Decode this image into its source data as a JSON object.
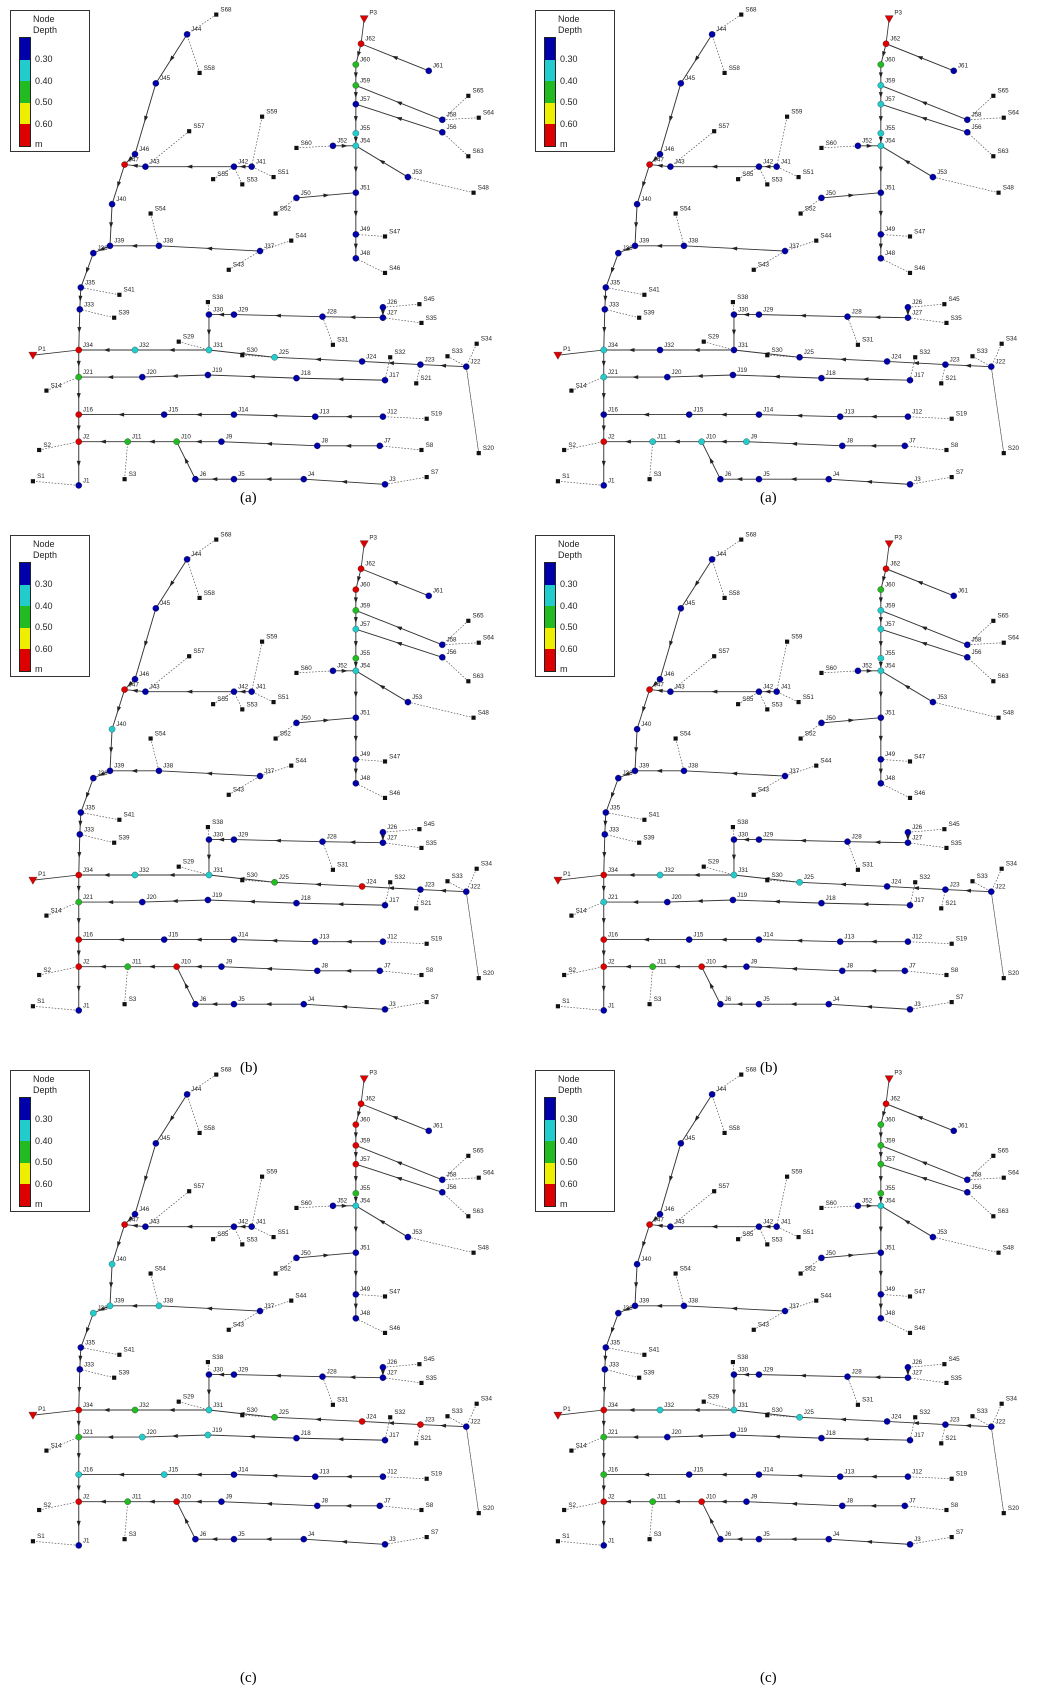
{
  "legend": {
    "title_line1": "Node",
    "title_line2": "Depth",
    "values": [
      "0.30",
      "0.40",
      "0.50",
      "0.60"
    ],
    "unit": "m",
    "colors": [
      "#0000aa",
      "#22cccc",
      "#22bb22",
      "#eeee00",
      "#dd0000"
    ]
  },
  "panels": [
    {
      "caption": "(a)"
    },
    {
      "caption": "(a)"
    },
    {
      "caption": "(b)"
    },
    {
      "caption": "(b)"
    },
    {
      "caption": "(c)"
    },
    {
      "caption": "(c)"
    }
  ],
  "network": {
    "junctions": [
      [
        "J1",
        56,
        466
      ],
      [
        "J2",
        56,
        424
      ],
      [
        "J3",
        350,
        465
      ],
      [
        "J4",
        272,
        460
      ],
      [
        "J5",
        205,
        460
      ],
      [
        "J6",
        168,
        460
      ],
      [
        "J7",
        345,
        428
      ],
      [
        "J8",
        285,
        428
      ],
      [
        "J9",
        193,
        424
      ],
      [
        "J10",
        150,
        424
      ],
      [
        "J11",
        103,
        424
      ],
      [
        "J12",
        348,
        400
      ],
      [
        "J13",
        283,
        400
      ],
      [
        "J14",
        205,
        398
      ],
      [
        "J15",
        138,
        398
      ],
      [
        "J16",
        56,
        398
      ],
      [
        "J17",
        350,
        365
      ],
      [
        "J18",
        265,
        363
      ],
      [
        "J19",
        180,
        360
      ],
      [
        "J20",
        117,
        362
      ],
      [
        "J21",
        56,
        362
      ],
      [
        "J22",
        428,
        352
      ],
      [
        "J23",
        384,
        350
      ],
      [
        "J24",
        328,
        347
      ],
      [
        "J25",
        244,
        343
      ],
      [
        "J26",
        348,
        295
      ],
      [
        "J27",
        348,
        305
      ],
      [
        "J28",
        290,
        304
      ],
      [
        "J29",
        205,
        302
      ],
      [
        "J30",
        181,
        302
      ],
      [
        "J31",
        181,
        336
      ],
      [
        "J32",
        110,
        336
      ],
      [
        "J33",
        57,
        297
      ],
      [
        "J34",
        56,
        336
      ],
      [
        "J35",
        58,
        276
      ],
      [
        "J36",
        70,
        243
      ],
      [
        "J37",
        230,
        241
      ],
      [
        "J38",
        133,
        236
      ],
      [
        "J39",
        86,
        236
      ],
      [
        "J40",
        88,
        196
      ],
      [
        "J41",
        222,
        160
      ],
      [
        "J42",
        205,
        160
      ],
      [
        "J43",
        120,
        160
      ],
      [
        "J45",
        130,
        80
      ],
      [
        "J46",
        110,
        148
      ],
      [
        "J47",
        100,
        158
      ],
      [
        "J44",
        160,
        33
      ],
      [
        "J48",
        322,
        248
      ],
      [
        "J49",
        322,
        225
      ],
      [
        "J50",
        265,
        190
      ],
      [
        "J51",
        322,
        185
      ],
      [
        "J53",
        372,
        170
      ],
      [
        "J54",
        322,
        140
      ],
      [
        "J55",
        322,
        128
      ],
      [
        "J56",
        405,
        127
      ],
      [
        "J57",
        322,
        100
      ],
      [
        "J58",
        405,
        115
      ],
      [
        "J59",
        322,
        82
      ],
      [
        "J60",
        322,
        62
      ],
      [
        "J61",
        392,
        68
      ],
      [
        "J62",
        327,
        42
      ],
      [
        "J52",
        300,
        140
      ]
    ],
    "pipes": [
      [
        "J1",
        "J2"
      ],
      [
        "J2",
        "J16"
      ],
      [
        "J16",
        "J21"
      ],
      [
        "J21",
        "J34"
      ],
      [
        "J34",
        "J33"
      ],
      [
        "J33",
        "J35"
      ],
      [
        "J35",
        "J36"
      ],
      [
        "J36",
        "J39"
      ],
      [
        "J39",
        "J40"
      ],
      [
        "J40",
        "J47"
      ],
      [
        "J47",
        "J46"
      ],
      [
        "J46",
        "J45"
      ],
      [
        "J45",
        "J44"
      ],
      [
        "J2",
        "J11"
      ],
      [
        "J11",
        "J10"
      ],
      [
        "J10",
        "J9"
      ],
      [
        "J9",
        "J8"
      ],
      [
        "J8",
        "J7"
      ],
      [
        "J10",
        "J6"
      ],
      [
        "J6",
        "J5"
      ],
      [
        "J5",
        "J4"
      ],
      [
        "J4",
        "J3"
      ],
      [
        "J16",
        "J15"
      ],
      [
        "J15",
        "J14"
      ],
      [
        "J14",
        "J13"
      ],
      [
        "J13",
        "J12"
      ],
      [
        "J21",
        "J20"
      ],
      [
        "J20",
        "J19"
      ],
      [
        "J19",
        "J18"
      ],
      [
        "J18",
        "J17"
      ],
      [
        "J34",
        "J32"
      ],
      [
        "J32",
        "J31"
      ],
      [
        "J31",
        "J25"
      ],
      [
        "J25",
        "J24"
      ],
      [
        "J24",
        "J23"
      ],
      [
        "J23",
        "J22"
      ],
      [
        "J31",
        "J30"
      ],
      [
        "J30",
        "J29"
      ],
      [
        "J29",
        "J28"
      ],
      [
        "J28",
        "J27"
      ],
      [
        "J27",
        "J26"
      ],
      [
        "J39",
        "J38"
      ],
      [
        "J38",
        "J37"
      ],
      [
        "J47",
        "J43"
      ],
      [
        "J43",
        "J42"
      ],
      [
        "J42",
        "J41"
      ],
      [
        "J48",
        "J49"
      ],
      [
        "J49",
        "J51"
      ],
      [
        "J51",
        "J50"
      ],
      [
        "J51",
        "J54"
      ],
      [
        "J54",
        "J52"
      ],
      [
        "J54",
        "J53"
      ],
      [
        "J54",
        "J55"
      ],
      [
        "J55",
        "J57"
      ],
      [
        "J57",
        "J56"
      ],
      [
        "J57",
        "J59"
      ],
      [
        "J59",
        "J58"
      ],
      [
        "J59",
        "J60"
      ],
      [
        "J60",
        "J62"
      ],
      [
        "J62",
        "J61"
      ]
    ],
    "subcatchments": [
      [
        "S1",
        12,
        462
      ],
      [
        "S2",
        18,
        432
      ],
      [
        "S3",
        100,
        460
      ],
      [
        "S7",
        390,
        458
      ],
      [
        "S8",
        385,
        432
      ],
      [
        "S19",
        390,
        402
      ],
      [
        "S20",
        440,
        435
      ],
      [
        "S21",
        380,
        368
      ],
      [
        "S34",
        438,
        330
      ],
      [
        "S33",
        410,
        342
      ],
      [
        "S32",
        355,
        343
      ],
      [
        "S31",
        300,
        331
      ],
      [
        "S30",
        213,
        341
      ],
      [
        "S29",
        152,
        328
      ],
      [
        "S45",
        383,
        292
      ],
      [
        "S35",
        385,
        310
      ],
      [
        "S38",
        180,
        290
      ],
      [
        "S39",
        90,
        305
      ],
      [
        "S41",
        95,
        283
      ],
      [
        "S44",
        260,
        231
      ],
      [
        "S43",
        200,
        259
      ],
      [
        "S54",
        125,
        205
      ],
      [
        "S55",
        185,
        172
      ],
      [
        "S53",
        213,
        177
      ],
      [
        "S57",
        162,
        126
      ],
      [
        "S58",
        172,
        70
      ],
      [
        "S59",
        232,
        112
      ],
      [
        "S60",
        265,
        142
      ],
      [
        "S51",
        243,
        170
      ],
      [
        "S52",
        245,
        205
      ],
      [
        "S47",
        350,
        227
      ],
      [
        "S46",
        350,
        262
      ],
      [
        "S48",
        435,
        185
      ],
      [
        "S63",
        430,
        150
      ],
      [
        "S64",
        440,
        113
      ],
      [
        "S65",
        430,
        92
      ],
      [
        "S68",
        188,
        14
      ],
      [
        "S14",
        25,
        375
      ]
    ],
    "outfalls": [
      [
        "P1",
        12,
        341
      ],
      [
        "P3",
        330,
        18
      ]
    ]
  },
  "depth_class": [
    {
      "J1": 0,
      "J2": 4,
      "J16": 4,
      "J21": 2,
      "J34": 4,
      "J11": 2,
      "J10": 2,
      "J32": 1,
      "J31": 1,
      "J25": 1,
      "J60": 2,
      "J59": 2,
      "J62": 4,
      "J55": 1,
      "J54": 1,
      "J47": 4,
      "J46": 0
    },
    {
      "J2": 4,
      "J21": 1,
      "J34": 1,
      "J11": 1,
      "J10": 1,
      "J9": 1,
      "J60": 2,
      "J59": 1,
      "J57": 1,
      "J55": 1,
      "J54": 1,
      "J47": 4,
      "J46": 0,
      "J62": 4
    },
    {
      "J2": 4,
      "J16": 4,
      "J21": 2,
      "J34": 4,
      "J11": 2,
      "J10": 4,
      "J32": 1,
      "J31": 1,
      "J25": 2,
      "J24": 4,
      "J60": 4,
      "J59": 2,
      "J57": 1,
      "J55": 2,
      "J54": 1,
      "J47": 4,
      "J40": 1,
      "J62": 4
    },
    {
      "J2": 4,
      "J16": 4,
      "J21": 1,
      "J34": 4,
      "J11": 2,
      "J10": 4,
      "J32": 1,
      "J31": 1,
      "J25": 1,
      "J60": 2,
      "J59": 1,
      "J57": 1,
      "J55": 1,
      "J54": 1,
      "J47": 4,
      "J62": 4
    },
    {
      "J2": 4,
      "J16": 1,
      "J21": 2,
      "J34": 4,
      "J11": 2,
      "J10": 4,
      "J32": 2,
      "J31": 1,
      "J25": 2,
      "J24": 4,
      "J23": 4,
      "J60": 4,
      "J59": 4,
      "J57": 4,
      "J55": 2,
      "J54": 1,
      "J47": 4,
      "J40": 1,
      "J39": 1,
      "J38": 1,
      "J36": 1,
      "J19": 1,
      "J20": 1,
      "J15": 1,
      "J62": 4
    },
    {
      "J2": 4,
      "J16": 2,
      "J21": 2,
      "J34": 4,
      "J11": 2,
      "J10": 4,
      "J32": 1,
      "J31": 1,
      "J25": 1,
      "J60": 2,
      "J59": 2,
      "J57": 2,
      "J55": 2,
      "J54": 1,
      "J47": 4,
      "J62": 4
    }
  ]
}
